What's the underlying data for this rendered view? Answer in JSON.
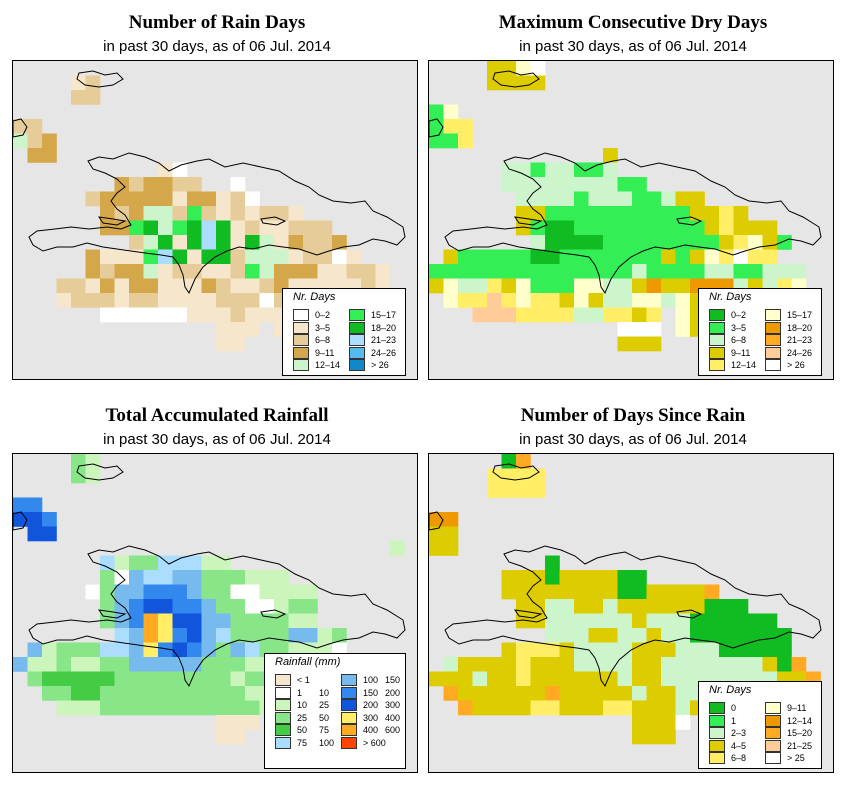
{
  "colors": {
    "background": "#e6e6e6",
    "coast": "#000000"
  },
  "panels": [
    {
      "id": "rain-days",
      "title": "Number of Rain Days",
      "subtitle": "in past 30 days, as of  06 Jul. 2014",
      "legend": {
        "title": "Nr. Days",
        "items": [
          {
            "label": "0–2",
            "color": "#ffffff"
          },
          {
            "label": "3–5",
            "color": "#f5e6cc"
          },
          {
            "label": "6–8",
            "color": "#e6cc99"
          },
          {
            "label": "9–11",
            "color": "#d4a84a"
          },
          {
            "label": "12–14",
            "color": "#ccf5cc"
          },
          {
            "label": "15–17",
            "color": "#33ee55"
          },
          {
            "label": "18–20",
            "color": "#11bb22"
          },
          {
            "label": "21–23",
            "color": "#aaddff"
          },
          {
            "label": "24–26",
            "color": "#55bbee"
          },
          {
            "label": "> 26",
            "color": "#1188cc"
          }
        ]
      },
      "grid": [
        "............................",
        "....BC......................",
        "....CC......................",
        "............................",
        "CC..........................",
        "ECD.........................",
        ".DD.........................",
        "..........BA.................",
        ".......DCDDCC..A.............",
        ".....CDDDDDBDDBCA............",
        "......DCDEECFCBCBCCB..........",
        "......DDFGEFGHGBCBBCCC........",
        "........CEGBGHGBGEBDCCD.......",
        ".....DBBBFHGBGGCEEEBCCAB......",
        ".....DCDDEBCCBBCFEDDDBBCCB....",
        "...CCBDBDDBBBDCBBCDBBBBBCB.....",
        "...BCCCBCCBBBBCCCACBBBBAAC....",
        "......AAAAAABBBCBBBBCC.B......",
        "..............BBB.BB..........",
        "..............BB..............",
        "..............................",
        ".............................."
      ]
    },
    {
      "id": "max-dry-days",
      "title": "Maximum Consecutive Dry Days",
      "subtitle": "in past 30 days, as of  06 Jul. 2014",
      "legend": {
        "title": "Nr. Days",
        "items": [
          {
            "label": "0–2",
            "color": "#11bb22"
          },
          {
            "label": "3–5",
            "color": "#33ee55"
          },
          {
            "label": "6–8",
            "color": "#ccf5cc"
          },
          {
            "label": "9–11",
            "color": "#ddcc00"
          },
          {
            "label": "12–14",
            "color": "#ffee66"
          },
          {
            "label": "15–17",
            "color": "#ffffcc"
          },
          {
            "label": "18–20",
            "color": "#ee9900"
          },
          {
            "label": "21–23",
            "color": "#ffaa22"
          },
          {
            "label": "24–26",
            "color": "#ffcc99"
          },
          {
            "label": "> 26",
            "color": "#ffffff"
          }
        ]
      },
      "grid": [
        "....DDFJ......................",
        "....DDDD......................",
        "..............................",
        "BF............................",
        "BEE...........................",
        "BBE...........................",
        "............D.................",
        ".....CCBCCBBC.................",
        ".....CCCCCCCCBB...............",
        "......CCCCBCCCBBCDD...........",
        "......DDBBBBBBBBBBDDED.........",
        "......DBAABBBBBBBBBDEDDD.......",
        ".......CAAAABBBBBBBBDEFDB......",
        ".DBBBBBAABBBBBBBDBDFEJEE.......",
        "BBBBBBBBBBBBBBCBBBBCCBBCCC.....",
        "DFCCEDFBBBFFCCDGDDGGGCDCEF....",
        ".FEEIEFEEDFDCCFFCFDDEE.E.......",
        "...IIIEEEECCEEDE.FDD.E........",
        ".............JJJ.FD...........",
        ".............DDD..............",
        "..............................",
        ".............................."
      ]
    },
    {
      "id": "total-rainfall",
      "title": "Total Accumulated Rainfall",
      "subtitle": "in past 30 days, as of  06 Jul. 2014",
      "legend": {
        "title": "Rainfall (mm)",
        "items": [
          {
            "label": "< 1",
            "label2": "",
            "color": "#f5e6cc"
          },
          {
            "label": "1",
            "label2": "10",
            "color": "#ffffff"
          },
          {
            "label": "10",
            "label2": "25",
            "color": "#ccf5bb"
          },
          {
            "label": "25",
            "label2": "50",
            "color": "#88e688"
          },
          {
            "label": "50",
            "label2": "75",
            "color": "#44cc44"
          },
          {
            "label": "75",
            "label2": "100",
            "color": "#aaddff"
          },
          {
            "label": "100",
            "label2": "150",
            "color": "#77bbee"
          },
          {
            "label": "150",
            "label2": "200",
            "color": "#3388ee"
          },
          {
            "label": "200",
            "label2": "300",
            "color": "#1155dd"
          },
          {
            "label": "300",
            "label2": "400",
            "color": "#ffee66"
          },
          {
            "label": "400",
            "label2": "600",
            "color": "#ffaa22"
          },
          {
            "label": "> 600",
            "label2": "",
            "color": "#ff4400"
          }
        ]
      },
      "grid": [
        "....DC........................",
        "....DC........................",
        "..............................",
        "HH............................",
        "IIH...........................",
        ".II...........................",
        "..........................C...",
        "......FCDDFFFCC...............",
        "......DBGFFGGDDDCCC............",
        ".....BDGGHHHGDDBBCCCC..........",
        "......DGHIIHHGDDBBCDD...........",
        "......DGHKJIIGGDDDDCC...........",
        ".......FGKJHIGFDDDDGGCD.........",
        ".GCDDDFFGJHIHGDGFDDCCCB........",
        "GCCDCCDDGGGGGDDDCCDDCCDCD......",
        ".DEEEEEDDDDDDDDCDDCCDDDDCCD.....",
        "..DDEEDDDDDDDDDDCCCDDDDCD.......",
        "...CCCDDDDDDDDDDDCCCDCC.........",
        "..............AAA..............",
        "..............AA...............",
        "..............................",
        ".............................."
      ]
    },
    {
      "id": "days-since-rain",
      "title": "Number of Days Since Rain",
      "subtitle": "in past 30 days, as of  06 Jul. 2014",
      "legend": {
        "title": "Nr. Days",
        "items": [
          {
            "label": "0",
            "color": "#11bb22"
          },
          {
            "label": "1",
            "color": "#33ee55"
          },
          {
            "label": "2–3",
            "color": "#ccf5cc"
          },
          {
            "label": "4–5",
            "color": "#ddcc00"
          },
          {
            "label": "6–8",
            "color": "#ffee66"
          },
          {
            "label": "9–11",
            "color": "#ffffcc"
          },
          {
            "label": "12–14",
            "color": "#ee9900"
          },
          {
            "label": "15–20",
            "color": "#ffaa22"
          },
          {
            "label": "21–25",
            "color": "#ffcc99"
          },
          {
            "label": "> 25",
            "color": "#ffffff"
          }
        ]
      },
      "grid": [
        ".....AH........................",
        "....EEEE.......................",
        "....EEEE.......................",
        "...............................",
        "GG.............................",
        "DD.............................",
        "DD.............................",
        "........A......................",
        ".....DDDADDDDAA................",
        ".....DDDDDDDDAADDDDH...........",
        "......DDCCDDCDDDDDDAAA.........",
        "......DDCCCCCCDCCCAAAAAA........",
        "........CCCDDCCDCCAAAAAAA.......",
        ".....DEEEDCCCCDDDCCCAAAAA.......",
        ".CDDDDEDDDCCCCDDCCCCCCCDAH.....",
        "DDDCDDEDDDDDDCDDCCCCCCCCDDH....",
        ".HDDDDDDHDDDDDCDDCCDDDDDDH.....",
        "..HDDDDEEDDDEEDDDCDDDHDC.......",
        "..............DDDJ.............",
        "..............DDD..............",
        "...............................",
        "..............................."
      ]
    }
  ]
}
